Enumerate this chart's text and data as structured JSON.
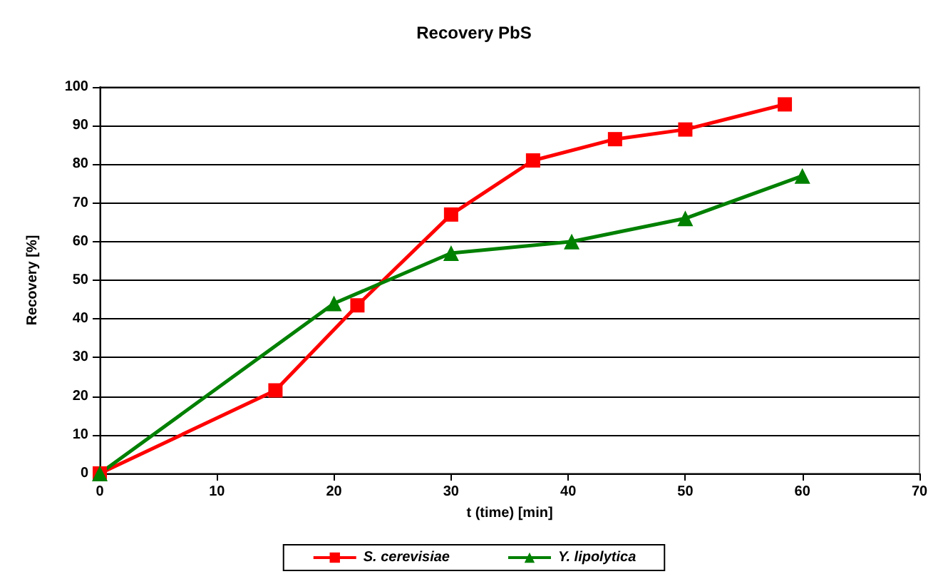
{
  "chart_data": {
    "type": "line",
    "title": "Recovery PbS",
    "xlabel": "t (time) [min]",
    "ylabel": "Recovery [%]",
    "xlim": [
      0,
      70
    ],
    "xticks": [
      0,
      10,
      20,
      30,
      40,
      50,
      60,
      70
    ],
    "ylim": [
      0,
      100
    ],
    "yticks": [
      0,
      10,
      20,
      30,
      40,
      50,
      60,
      70,
      80,
      90,
      100
    ],
    "grid": "y",
    "legend": "bottom",
    "series": [
      {
        "name": "S. cerevisiae",
        "color": "#ff0000",
        "marker": "square",
        "x": [
          0,
          15,
          22,
          30,
          37,
          44,
          50,
          58.5
        ],
        "values": [
          0,
          21.5,
          43.5,
          67,
          81,
          86.5,
          89,
          95.5
        ]
      },
      {
        "name": "Y. lipolytica",
        "color": "#008000",
        "marker": "triangle",
        "x": [
          0,
          20,
          30,
          40.3,
          50,
          60
        ],
        "values": [
          0,
          44,
          57,
          60,
          66,
          77
        ]
      }
    ]
  }
}
